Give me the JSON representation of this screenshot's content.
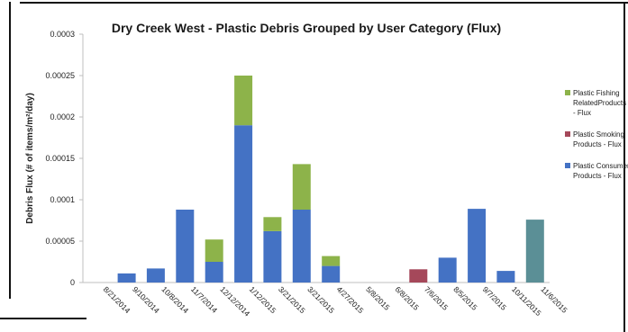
{
  "chart_data": {
    "type": "bar",
    "stacked": true,
    "title": "Dry Creek West - Plastic Debris Grouped by User Category (Flux)",
    "xlabel": "",
    "ylabel": "Debris Flux (# of items/m²/day)",
    "ylim": [
      0,
      0.0003
    ],
    "yticks": [
      "0",
      "0.00005",
      "0.0001",
      "0.00015",
      "0.0002",
      "0.00025",
      "0.0003"
    ],
    "categories": [
      "8/21/2014",
      "9/10/2014",
      "10/8/2014",
      "11/7/2014",
      "12/12/2014",
      "1/12/2015",
      "3/21/2015",
      "3/21/2015",
      "4/27/2015",
      "5/8/2015",
      "6/8/2015",
      "7/6/2015",
      "8/5/2015",
      "9/7/2015",
      "10/11/2015",
      "11/6/2015"
    ],
    "series": [
      {
        "name": "Plastic Consumer Products - Flux",
        "color": "#4472c4",
        "values": [
          0,
          1.1e-05,
          1.7e-05,
          8.8e-05,
          2.5e-05,
          0.00019,
          6.2e-05,
          8.8e-05,
          2e-05,
          0,
          0,
          0,
          3e-05,
          8.9e-05,
          1.4e-05,
          0
        ]
      },
      {
        "name": "Plastic Smoking Products - Flux",
        "color": "#a5485a",
        "values": [
          0,
          0,
          0,
          0,
          0,
          0,
          0,
          0,
          0,
          0,
          0,
          1.6e-05,
          0,
          0,
          0,
          0
        ]
      },
      {
        "name": "Plastic Fishing RelatedProducts - Flux",
        "color": "#8db34a",
        "values": [
          0,
          0,
          0,
          0,
          2.7e-05,
          6e-05,
          1.7e-05,
          5.5e-05,
          1.2e-05,
          0,
          0,
          0,
          0,
          0,
          0,
          0
        ]
      },
      {
        "name": "",
        "color": "#5b8f96",
        "values": [
          0,
          0,
          0,
          0,
          0,
          0,
          0,
          0,
          0,
          0,
          0,
          0,
          0,
          0,
          0,
          7.6e-05
        ]
      }
    ],
    "legend": {
      "placement": "right",
      "entries": [
        {
          "lines": [
            "Plastic Fishing",
            "RelatedProducts",
            "- Flux"
          ],
          "color": "#8db34a"
        },
        {
          "lines": [
            "Plastic Smoking",
            "Products - Flux"
          ],
          "color": "#a5485a"
        },
        {
          "lines": [
            "Plastic Consumer",
            "Products - Flux"
          ],
          "color": "#4472c4"
        }
      ]
    },
    "grid": false
  }
}
